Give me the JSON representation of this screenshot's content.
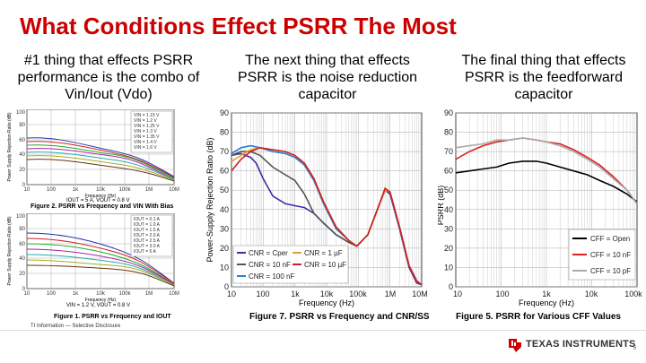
{
  "slide": {
    "title": "What Conditions Effect PSRR The Most",
    "col1_text": "#1 thing that effects PSRR performance is the combo of Vin/Iout (Vdo)",
    "col2_text": "The next thing that effects PSRR is the noise reduction capacitor",
    "col3_text": "The final thing that effects PSRR is the feedforward capacitor",
    "footer": "TI Information — Selective Disclosure",
    "brand": "Texas Instruments",
    "page": "6"
  },
  "chart_data": [
    {
      "type": "line",
      "caption": "Figure 2. PSRR vs Frequency and VIN With Bias",
      "condition": "IOUT = 5 A, VOUT = 0.8 V",
      "xlabel": "Frequency (Hz)",
      "ylabel": "Power Supply Rejection Ratio (dB)",
      "x_ticks": [
        "10",
        "100",
        "1k",
        "10k",
        "100k",
        "1M",
        "10M"
      ],
      "y_ticks": [
        "0",
        "20",
        "40",
        "60",
        "80",
        "100"
      ],
      "legend": [
        "VIN = 1.15 V",
        "VIN = 1.2 V",
        "VIN = 1.25 V",
        "VIN = 1.3 V",
        "VIN = 1.35 V",
        "VIN = 1.4 V",
        "VIN = 1.6 V"
      ]
    },
    {
      "type": "line",
      "caption": "Figure 1. PSRR vs Frequency and IOUT",
      "condition": "VIN = 1.2 V, VOUT = 0.8 V",
      "xlabel": "Frequency (Hz)",
      "ylabel": "Power Supply Rejection Ratio (dB)",
      "x_ticks": [
        "10",
        "100",
        "1k",
        "10k",
        "100k",
        "1M",
        "10M"
      ],
      "y_ticks": [
        "0",
        "20",
        "40",
        "60",
        "80",
        "100"
      ],
      "legend": [
        "IOUT = 0.1 A",
        "IOUT = 1.0 A",
        "IOUT = 1.5 A",
        "IOUT = 2.0 A",
        "IOUT = 2.5 A",
        "IOUT = 3.0 A",
        "IOUT = 5 A"
      ]
    },
    {
      "type": "line",
      "title": "",
      "caption": "Figure 7. PSRR vs Frequency and CNR/SS",
      "xlabel": "Frequency (Hz)",
      "ylabel": "Power-Supply Rejection Ratio (dB)",
      "x_ticks": [
        "10",
        "100",
        "1k",
        "10k",
        "100k",
        "1M",
        "10M"
      ],
      "x_values": [
        10,
        100,
        1000,
        10000,
        100000,
        1000000,
        10000000
      ],
      "ylim": [
        0,
        90
      ],
      "y_ticks": [
        0,
        10,
        20,
        30,
        40,
        50,
        60,
        70,
        80,
        90
      ],
      "legend": [
        "CNR = Cper",
        "CNR = 1 µF",
        "CNR = 10 nF",
        "CNR = 10 µF",
        "CNR = 100 nF"
      ],
      "series": [
        {
          "name": "CNR = Cper",
          "color": "#3b2ca8",
          "points": [
            [
              10,
              68
            ],
            [
              20,
              69
            ],
            [
              40,
              67
            ],
            [
              60,
              64
            ],
            [
              100,
              56
            ],
            [
              200,
              47
            ],
            [
              500,
              43
            ],
            [
              1000,
              42
            ],
            [
              2000,
              41
            ],
            [
              4000,
              38
            ],
            [
              8000,
              33
            ],
            [
              20000,
              27
            ],
            [
              50000,
              23
            ],
            [
              90000,
              21
            ],
            [
              200000,
              27
            ],
            [
              400000,
              40
            ],
            [
              700000,
              50
            ],
            [
              1000000,
              48
            ],
            [
              2000000,
              30
            ],
            [
              4000000,
              10
            ],
            [
              7000000,
              2
            ],
            [
              10000000,
              1
            ]
          ]
        },
        {
          "name": "CNR = 10 nF",
          "color": "#555555",
          "points": [
            [
              10,
              68
            ],
            [
              20,
              70
            ],
            [
              40,
              70
            ],
            [
              80,
              68
            ],
            [
              200,
              62
            ],
            [
              500,
              58
            ],
            [
              1000,
              55
            ],
            [
              2000,
              48
            ],
            [
              4000,
              38
            ],
            [
              8000,
              33
            ],
            [
              20000,
              27
            ],
            [
              50000,
              23
            ],
            [
              90000,
              21
            ],
            [
              200000,
              27
            ],
            [
              400000,
              40
            ],
            [
              700000,
              50
            ],
            [
              1000000,
              49
            ],
            [
              2000000,
              31
            ],
            [
              4000000,
              11
            ],
            [
              7000000,
              3
            ],
            [
              10000000,
              1
            ]
          ]
        },
        {
          "name": "CNR = 100 nF",
          "color": "#2b7bd6",
          "points": [
            [
              10,
              69
            ],
            [
              20,
              72
            ],
            [
              40,
              73
            ],
            [
              80,
              72
            ],
            [
              200,
              70
            ],
            [
              500,
              69
            ],
            [
              1000,
              67
            ],
            [
              2000,
              63
            ],
            [
              4000,
              55
            ],
            [
              8000,
              43
            ],
            [
              20000,
              30
            ],
            [
              50000,
              24
            ],
            [
              90000,
              21
            ],
            [
              200000,
              27
            ],
            [
              400000,
              40
            ],
            [
              700000,
              50
            ],
            [
              1000000,
              49
            ],
            [
              2000000,
              31
            ],
            [
              4000000,
              11
            ],
            [
              7000000,
              3
            ],
            [
              10000000,
              1
            ]
          ]
        },
        {
          "name": "CNR = 1 µF",
          "color": "#e0a030",
          "points": [
            [
              10,
              65
            ],
            [
              20,
              68
            ],
            [
              40,
              71
            ],
            [
              80,
              72
            ],
            [
              200,
              71
            ],
            [
              500,
              70
            ],
            [
              1000,
              68
            ],
            [
              2000,
              64
            ],
            [
              4000,
              56
            ],
            [
              8000,
              44
            ],
            [
              20000,
              31
            ],
            [
              50000,
              24
            ],
            [
              90000,
              21
            ],
            [
              200000,
              27
            ],
            [
              400000,
              40
            ],
            [
              700000,
              50
            ],
            [
              1000000,
              49
            ],
            [
              2000000,
              31
            ],
            [
              4000000,
              11
            ],
            [
              7000000,
              3
            ],
            [
              10000000,
              1
            ]
          ]
        },
        {
          "name": "CNR = 10 µF",
          "color": "#d02020",
          "points": [
            [
              10,
              60
            ],
            [
              20,
              66
            ],
            [
              40,
              70
            ],
            [
              80,
              72
            ],
            [
              200,
              71
            ],
            [
              500,
              70
            ],
            [
              1000,
              68
            ],
            [
              2000,
              64
            ],
            [
              4000,
              56
            ],
            [
              8000,
              44
            ],
            [
              20000,
              31
            ],
            [
              50000,
              24
            ],
            [
              90000,
              21
            ],
            [
              200000,
              27
            ],
            [
              400000,
              40
            ],
            [
              700000,
              51
            ],
            [
              1000000,
              49
            ],
            [
              2000000,
              31
            ],
            [
              4000000,
              11
            ],
            [
              7000000,
              3
            ],
            [
              10000000,
              1
            ]
          ]
        }
      ]
    },
    {
      "type": "line",
      "title": "",
      "caption": "Figure 5. PSRR for Various CFF Values",
      "xlabel": "Frequency (Hz)",
      "ylabel": "PSRR (dB)",
      "x_ticks": [
        "10",
        "100",
        "1k",
        "10k",
        "100k"
      ],
      "x_values": [
        10,
        100,
        1000,
        10000,
        100000
      ],
      "ylim": [
        0,
        90
      ],
      "y_ticks": [
        0,
        10,
        20,
        30,
        40,
        50,
        60,
        70,
        80,
        90
      ],
      "legend": [
        "CFF = Open",
        "CFF = 10 nF",
        "CFF = 10 pF"
      ],
      "series": [
        {
          "name": "CFF = Open",
          "color": "#000000",
          "points": [
            [
              10,
              59
            ],
            [
              20,
              60
            ],
            [
              40,
              61
            ],
            [
              80,
              62
            ],
            [
              150,
              64
            ],
            [
              300,
              65
            ],
            [
              600,
              65
            ],
            [
              1000,
              64
            ],
            [
              2000,
              62
            ],
            [
              4000,
              60
            ],
            [
              8000,
              58
            ],
            [
              15000,
              55
            ],
            [
              30000,
              52
            ],
            [
              60000,
              48
            ],
            [
              100000,
              44
            ]
          ]
        },
        {
          "name": "CFF = 10 nF",
          "color": "#e02020",
          "points": [
            [
              10,
              66
            ],
            [
              20,
              70
            ],
            [
              40,
              73
            ],
            [
              80,
              75
            ],
            [
              150,
              76
            ],
            [
              300,
              77
            ],
            [
              600,
              76
            ],
            [
              1000,
              75
            ],
            [
              2000,
              74
            ],
            [
              4000,
              71
            ],
            [
              8000,
              67
            ],
            [
              15000,
              63
            ],
            [
              30000,
              57
            ],
            [
              60000,
              50
            ],
            [
              100000,
              43
            ]
          ]
        },
        {
          "name": "CFF = 10 pF",
          "color": "#aaaaaa",
          "points": [
            [
              10,
              72
            ],
            [
              20,
              73
            ],
            [
              40,
              74
            ],
            [
              80,
              76
            ],
            [
              150,
              76
            ],
            [
              300,
              77
            ],
            [
              600,
              76
            ],
            [
              1000,
              75
            ],
            [
              2000,
              73
            ],
            [
              4000,
              70
            ],
            [
              8000,
              66
            ],
            [
              15000,
              62
            ],
            [
              30000,
              56
            ],
            [
              60000,
              50
            ],
            [
              100000,
              43
            ]
          ]
        }
      ]
    }
  ]
}
